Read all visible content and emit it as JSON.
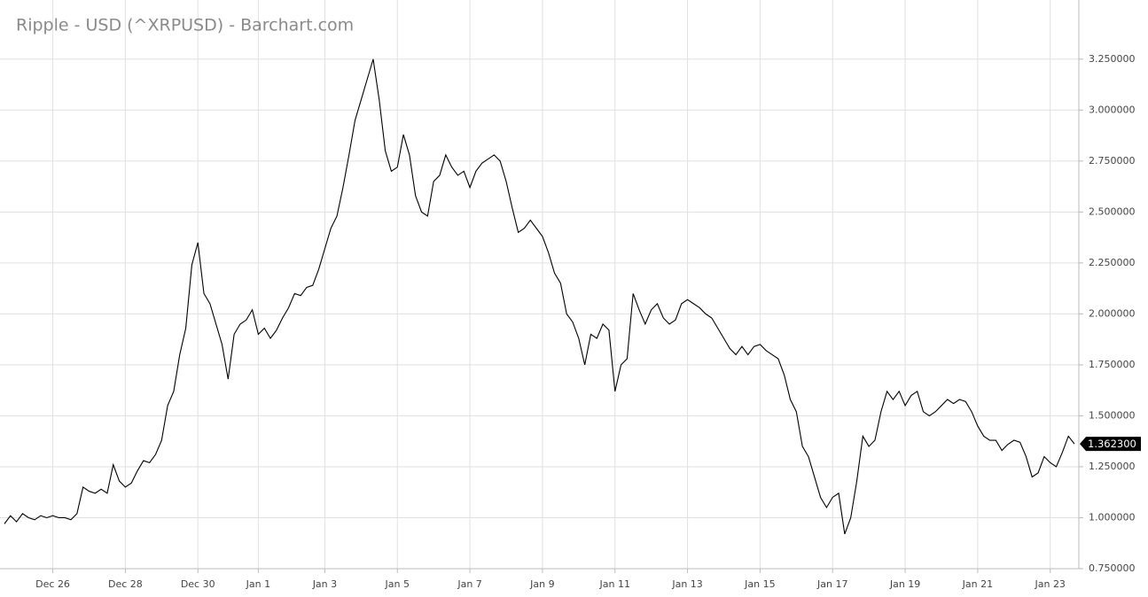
{
  "chart_data": {
    "type": "line",
    "title": "Ripple - USD (^XRPUSD) - Barchart.com",
    "categories": [
      null,
      null,
      null,
      null,
      null,
      null,
      null,
      null,
      "Dec 26",
      null,
      null,
      null,
      null,
      null,
      null,
      null,
      null,
      null,
      null,
      null,
      "Dec 28",
      null,
      null,
      null,
      null,
      null,
      null,
      null,
      null,
      null,
      null,
      null,
      "Dec 30",
      null,
      null,
      null,
      null,
      null,
      null,
      null,
      null,
      null,
      "Jan 1",
      null,
      null,
      null,
      null,
      null,
      null,
      null,
      null,
      null,
      null,
      "Jan 3",
      null,
      null,
      null,
      null,
      null,
      null,
      null,
      null,
      null,
      null,
      null,
      "Jan 5",
      null,
      null,
      null,
      null,
      null,
      null,
      null,
      null,
      null,
      null,
      null,
      "Jan 7",
      null,
      null,
      null,
      null,
      null,
      null,
      null,
      null,
      null,
      null,
      null,
      "Jan 9",
      null,
      null,
      null,
      null,
      null,
      null,
      null,
      null,
      null,
      null,
      null,
      "Jan 11",
      null,
      null,
      null,
      null,
      null,
      null,
      null,
      null,
      null,
      null,
      null,
      "Jan 13",
      null,
      null,
      null,
      null,
      null,
      null,
      null,
      null,
      null,
      null,
      null,
      "Jan 15",
      null,
      null,
      null,
      null,
      null,
      null,
      null,
      null,
      null,
      null,
      null,
      "Jan 17",
      null,
      null,
      null,
      null,
      null,
      null,
      null,
      null,
      null,
      null,
      null,
      "Jan 19",
      null,
      null,
      null,
      null,
      null,
      null,
      null,
      null,
      null,
      null,
      null,
      "Jan 21",
      null,
      null,
      null,
      null,
      null,
      null,
      null,
      null,
      null,
      null,
      null,
      "Jan 23",
      null,
      null,
      null,
      null
    ],
    "values": [
      0.97,
      1.01,
      0.98,
      1.02,
      1.0,
      0.99,
      1.01,
      1.0,
      1.01,
      1.0,
      1.0,
      0.99,
      1.02,
      1.15,
      1.13,
      1.12,
      1.14,
      1.12,
      1.26,
      1.18,
      1.15,
      1.17,
      1.23,
      1.28,
      1.27,
      1.31,
      1.38,
      1.55,
      1.62,
      1.8,
      1.93,
      2.24,
      2.35,
      2.1,
      2.05,
      1.95,
      1.85,
      1.68,
      1.9,
      1.95,
      1.97,
      2.02,
      1.9,
      1.93,
      1.88,
      1.92,
      1.98,
      2.03,
      2.1,
      2.09,
      2.13,
      2.14,
      2.22,
      2.32,
      2.42,
      2.48,
      2.62,
      2.78,
      2.95,
      3.05,
      3.15,
      3.25,
      3.05,
      2.8,
      2.7,
      2.72,
      2.88,
      2.78,
      2.58,
      2.5,
      2.48,
      2.65,
      2.68,
      2.78,
      2.72,
      2.68,
      2.7,
      2.62,
      2.7,
      2.74,
      2.76,
      2.78,
      2.75,
      2.65,
      2.52,
      2.4,
      2.42,
      2.46,
      2.42,
      2.38,
      2.3,
      2.2,
      2.15,
      2.0,
      1.96,
      1.88,
      1.75,
      1.9,
      1.88,
      1.95,
      1.92,
      1.62,
      1.75,
      1.78,
      2.1,
      2.02,
      1.95,
      2.02,
      2.05,
      1.98,
      1.95,
      1.97,
      2.05,
      2.07,
      2.05,
      2.03,
      2.0,
      1.98,
      1.93,
      1.88,
      1.83,
      1.8,
      1.84,
      1.8,
      1.84,
      1.85,
      1.82,
      1.8,
      1.78,
      1.7,
      1.58,
      1.52,
      1.35,
      1.3,
      1.2,
      1.1,
      1.05,
      1.1,
      1.12,
      0.92,
      1.0,
      1.18,
      1.4,
      1.35,
      1.38,
      1.52,
      1.62,
      1.58,
      1.62,
      1.55,
      1.6,
      1.62,
      1.52,
      1.5,
      1.52,
      1.55,
      1.58,
      1.56,
      1.58,
      1.57,
      1.52,
      1.45,
      1.4,
      1.38,
      1.38,
      1.33,
      1.36,
      1.38,
      1.37,
      1.3,
      1.2,
      1.22,
      1.3,
      1.27,
      1.25,
      1.32,
      1.4,
      1.3623
    ],
    "color": "#000000",
    "current_price": {
      "value": 1.3623,
      "label": "1.362300"
    },
    "ylim": [
      0.75,
      3.5
    ],
    "yticks": [
      {
        "value": 0.75,
        "label": "0.750000"
      },
      {
        "value": 1.0,
        "label": "1.000000"
      },
      {
        "value": 1.25,
        "label": "1.250000"
      },
      {
        "value": 1.5,
        "label": "1.500000"
      },
      {
        "value": 1.75,
        "label": "1.750000"
      },
      {
        "value": 2.0,
        "label": "2.000000"
      },
      {
        "value": 2.25,
        "label": "2.250000"
      },
      {
        "value": 2.5,
        "label": "2.500000"
      },
      {
        "value": 2.75,
        "label": "2.750000"
      },
      {
        "value": 3.0,
        "label": "3.000000"
      },
      {
        "value": 3.25,
        "label": "3.250000"
      }
    ],
    "grid": true
  }
}
